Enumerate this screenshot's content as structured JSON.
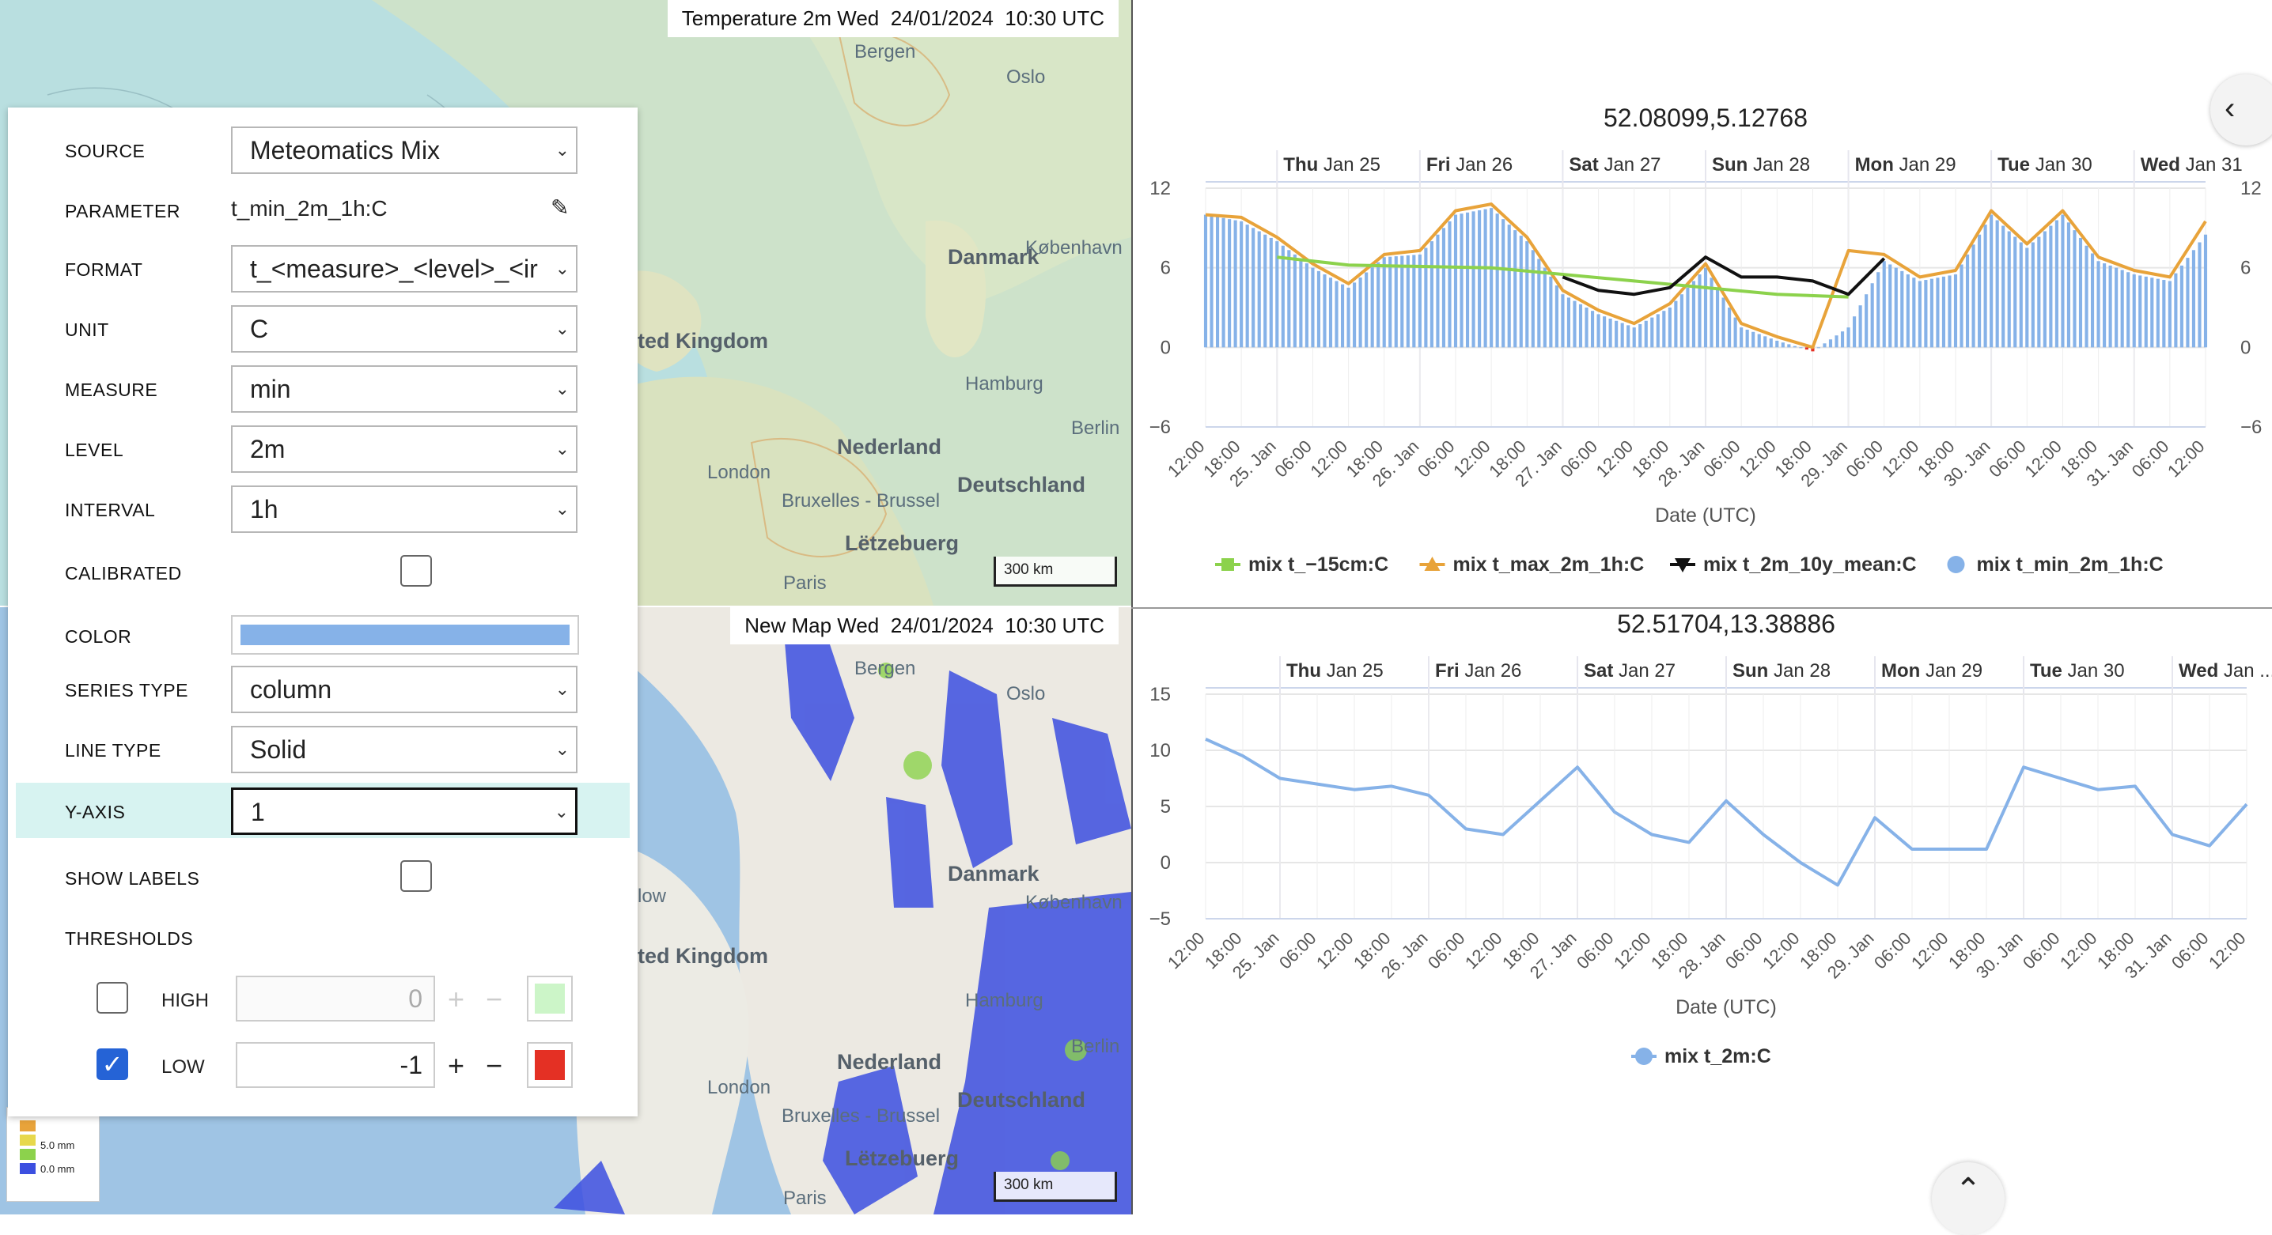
{
  "maps": {
    "top": {
      "title": "Temperature 2m Wed  24/01/2024  10:30 UTC",
      "scale": "300 km",
      "places": [
        {
          "name": "Bergen",
          "big": false
        },
        {
          "name": "Oslo",
          "big": false
        },
        {
          "name": "Danmark",
          "big": true
        },
        {
          "name": "København",
          "big": false
        },
        {
          "name": "ted Kingdom",
          "big": true
        },
        {
          "name": "Hamburg",
          "big": false
        },
        {
          "name": "Nederland",
          "big": true
        },
        {
          "name": "Berlin",
          "big": false
        },
        {
          "name": "London",
          "big": false
        },
        {
          "name": "Deutschland",
          "big": true
        },
        {
          "name": "Bruxelles - Brussel",
          "big": false
        },
        {
          "name": "Lëtzebuerg",
          "big": true
        },
        {
          "name": "Paris",
          "big": false
        }
      ]
    },
    "bottom": {
      "title": "New Map Wed  24/01/2024  10:30 UTC",
      "scale": "300 km",
      "places": [
        {
          "name": "Bergen",
          "big": false
        },
        {
          "name": "Oslo",
          "big": false
        },
        {
          "name": "Danmark",
          "big": true
        },
        {
          "name": "København",
          "big": false
        },
        {
          "name": "ted Kingdom",
          "big": true
        },
        {
          "name": "Hamburg",
          "big": false
        },
        {
          "name": "Nederland",
          "big": true
        },
        {
          "name": "Berlin",
          "big": false
        },
        {
          "name": "London",
          "big": false
        },
        {
          "name": "Deutschland",
          "big": true
        },
        {
          "name": "Bruxelles - Brussel",
          "big": false
        },
        {
          "name": "Lëtzebuerg",
          "big": true
        },
        {
          "name": "Paris",
          "big": false
        },
        {
          "name": "low",
          "big": false
        }
      ],
      "legend": [
        "5.0 mm",
        "0.0 mm"
      ]
    }
  },
  "panel": {
    "source": {
      "label": "SOURCE",
      "value": "Meteomatics Mix"
    },
    "parameter": {
      "label": "PARAMETER",
      "value": "t_min_2m_1h:C"
    },
    "format": {
      "label": "FORMAT",
      "value": "t_<measure>_<level>_<ir"
    },
    "unit": {
      "label": "UNIT",
      "value": "C"
    },
    "measure": {
      "label": "MEASURE",
      "value": "min"
    },
    "level": {
      "label": "LEVEL",
      "value": "2m"
    },
    "interval": {
      "label": "INTERVAL",
      "value": "1h"
    },
    "calibrated": {
      "label": "CALIBRATED",
      "checked": false
    },
    "color": {
      "label": "COLOR",
      "value": "#86b2e8"
    },
    "series_type": {
      "label": "SERIES TYPE",
      "value": "column"
    },
    "line_type": {
      "label": "LINE TYPE",
      "value": "Solid"
    },
    "y_axis": {
      "label": "Y-AXIS",
      "value": "1"
    },
    "show_labels": {
      "label": "SHOW LABELS",
      "checked": false
    },
    "thresholds": {
      "label": "THRESHOLDS",
      "high": {
        "label": "HIGH",
        "checked": false,
        "value": "0",
        "color": "#ccf5c8"
      },
      "low": {
        "label": "LOW",
        "checked": true,
        "value": "-1",
        "color": "#e43024"
      }
    }
  },
  "charts": [
    {
      "title": "52.08099,5.12768",
      "xlabel": "Date (UTC)",
      "yticks": [
        "12",
        "6",
        "0",
        "−6"
      ],
      "yticks_right": [
        "12",
        "6",
        "0",
        "−6"
      ],
      "ylim": [
        -6,
        12
      ],
      "day_labels": [
        {
          "d": "Thu",
          "r": " Jan 25"
        },
        {
          "d": "Fri",
          "r": " Jan 26"
        },
        {
          "d": "Sat",
          "r": " Jan 27"
        },
        {
          "d": "Sun",
          "r": " Jan 28"
        },
        {
          "d": "Mon",
          "r": " Jan 29"
        },
        {
          "d": "Tue",
          "r": " Jan 30"
        },
        {
          "d": "Wed",
          "r": " Jan 31"
        }
      ],
      "xtick_labels": [
        "12:00",
        "18:00",
        "25. Jan",
        "06:00",
        "12:00",
        "18:00",
        "26. Jan",
        "06:00",
        "12:00",
        "18:00",
        "27. Jan",
        "06:00",
        "12:00",
        "18:00",
        "28. Jan",
        "06:00",
        "12:00",
        "18:00",
        "29. Jan",
        "06:00",
        "12:00",
        "18:00",
        "30. Jan",
        "06:00",
        "12:00",
        "18:00",
        "31. Jan",
        "06:00",
        "12:00"
      ],
      "legend": [
        {
          "name": "mix t_−15cm:C",
          "color": "#8cd24c",
          "marker": "square"
        },
        {
          "name": "mix t_max_2m_1h:C",
          "color": "#e8a33a",
          "marker": "triangle"
        },
        {
          "name": "mix t_2m_10y_mean:C",
          "color": "#111111",
          "marker": "triangle-down"
        },
        {
          "name": "mix t_min_2m_1h:C",
          "color": "#86b2e8",
          "marker": "circle"
        }
      ]
    },
    {
      "title": "52.51704,13.38886",
      "xlabel": "Date (UTC)",
      "yticks": [
        "15",
        "10",
        "5",
        "0",
        "−5"
      ],
      "ylim": [
        -5,
        15
      ],
      "day_labels": [
        {
          "d": "Thu",
          "r": " Jan 25"
        },
        {
          "d": "Fri",
          "r": " Jan 26"
        },
        {
          "d": "Sat",
          "r": " Jan 27"
        },
        {
          "d": "Sun",
          "r": " Jan 28"
        },
        {
          "d": "Mon",
          "r": " Jan 29"
        },
        {
          "d": "Tue",
          "r": " Jan 30"
        },
        {
          "d": "Wed",
          "r": " Jan ..."
        }
      ],
      "xtick_labels": [
        "12:00",
        "18:00",
        "25. Jan",
        "06:00",
        "12:00",
        "18:00",
        "26. Jan",
        "06:00",
        "12:00",
        "18:00",
        "27. Jan",
        "06:00",
        "12:00",
        "18:00",
        "28. Jan",
        "06:00",
        "12:00",
        "18:00",
        "29. Jan",
        "06:00",
        "12:00",
        "18:00",
        "30. Jan",
        "06:00",
        "12:00",
        "18:00",
        "31. Jan",
        "06:00",
        "12:00"
      ],
      "legend": [
        {
          "name": "mix t_2m:C",
          "color": "#86b2e8",
          "marker": "circle"
        }
      ]
    }
  ],
  "chart_data": [
    {
      "type": "bar",
      "title": "52.08099,5.12768",
      "xlabel": "Date (UTC)",
      "ylabel": "",
      "ylim": [
        -6,
        12
      ],
      "x_range": [
        "2024-01-24 12:00",
        "2024-01-31 12:00"
      ],
      "series": [
        {
          "name": "mix t_min_2m_1h:C",
          "type": "column",
          "color": "#86b2e8",
          "x_hours": [
            0,
            6,
            12,
            18,
            24,
            30,
            36,
            42,
            48,
            54,
            60,
            66,
            72,
            78,
            84,
            90,
            96,
            102,
            108,
            114,
            120,
            126,
            132,
            138,
            144,
            150,
            156,
            162,
            168
          ],
          "values": [
            10.0,
            9.5,
            8.0,
            6.0,
            4.5,
            6.8,
            7.0,
            10.0,
            10.5,
            8.0,
            4.0,
            2.5,
            1.5,
            3.0,
            6.0,
            1.5,
            0.5,
            -0.3,
            1.5,
            6.5,
            5.0,
            5.5,
            10.0,
            7.5,
            10.0,
            6.5,
            5.5,
            5.0,
            8.5
          ]
        },
        {
          "name": "mix t_max_2m_1h:C",
          "type": "line",
          "color": "#e8a33a",
          "x_hours": [
            0,
            6,
            12,
            18,
            24,
            30,
            36,
            42,
            48,
            54,
            60,
            66,
            72,
            78,
            84,
            90,
            96,
            102,
            108,
            114,
            120,
            126,
            132,
            138,
            144,
            150,
            156,
            162,
            168
          ],
          "values": [
            10.0,
            9.8,
            8.3,
            6.3,
            4.8,
            7.0,
            7.3,
            10.3,
            10.8,
            8.3,
            4.3,
            2.8,
            1.8,
            3.3,
            6.3,
            1.8,
            0.8,
            0.0,
            7.3,
            7.0,
            5.3,
            5.8,
            10.3,
            7.8,
            10.3,
            6.8,
            5.8,
            5.3,
            9.5
          ]
        },
        {
          "name": "mix t_−15cm:C",
          "type": "line",
          "color": "#8cd24c",
          "x_hours": [
            12,
            24,
            48,
            72,
            96,
            108
          ],
          "values": [
            6.8,
            6.2,
            6.0,
            5.0,
            4.0,
            3.8
          ]
        },
        {
          "name": "mix t_2m_10y_mean:C",
          "type": "line",
          "color": "#111111",
          "x_hours": [
            60,
            66,
            72,
            78,
            84,
            90,
            96,
            102,
            108,
            114
          ],
          "values": [
            5.3,
            4.3,
            4.0,
            4.5,
            6.8,
            5.3,
            5.3,
            5.0,
            4.0,
            6.7
          ]
        }
      ]
    },
    {
      "type": "line",
      "title": "52.51704,13.38886",
      "xlabel": "Date (UTC)",
      "ylabel": "",
      "ylim": [
        -5,
        15
      ],
      "x_range": [
        "2024-01-24 12:00",
        "2024-01-31 12:00"
      ],
      "series": [
        {
          "name": "mix t_2m:C",
          "color": "#86b2e8",
          "x_hours": [
            0,
            6,
            12,
            18,
            24,
            30,
            36,
            42,
            48,
            54,
            60,
            66,
            72,
            78,
            84,
            90,
            96,
            102,
            108,
            114,
            120,
            126,
            132,
            138,
            144,
            150,
            156,
            162,
            168
          ],
          "values": [
            11.0,
            9.5,
            7.5,
            7.0,
            6.5,
            6.8,
            6.0,
            3.0,
            2.5,
            5.5,
            8.5,
            4.5,
            2.5,
            1.8,
            5.5,
            2.5,
            0.0,
            -2.0,
            4.0,
            1.2,
            1.2,
            1.2,
            8.5,
            7.5,
            6.5,
            6.8,
            2.5,
            1.5,
            5.2
          ]
        }
      ]
    }
  ]
}
